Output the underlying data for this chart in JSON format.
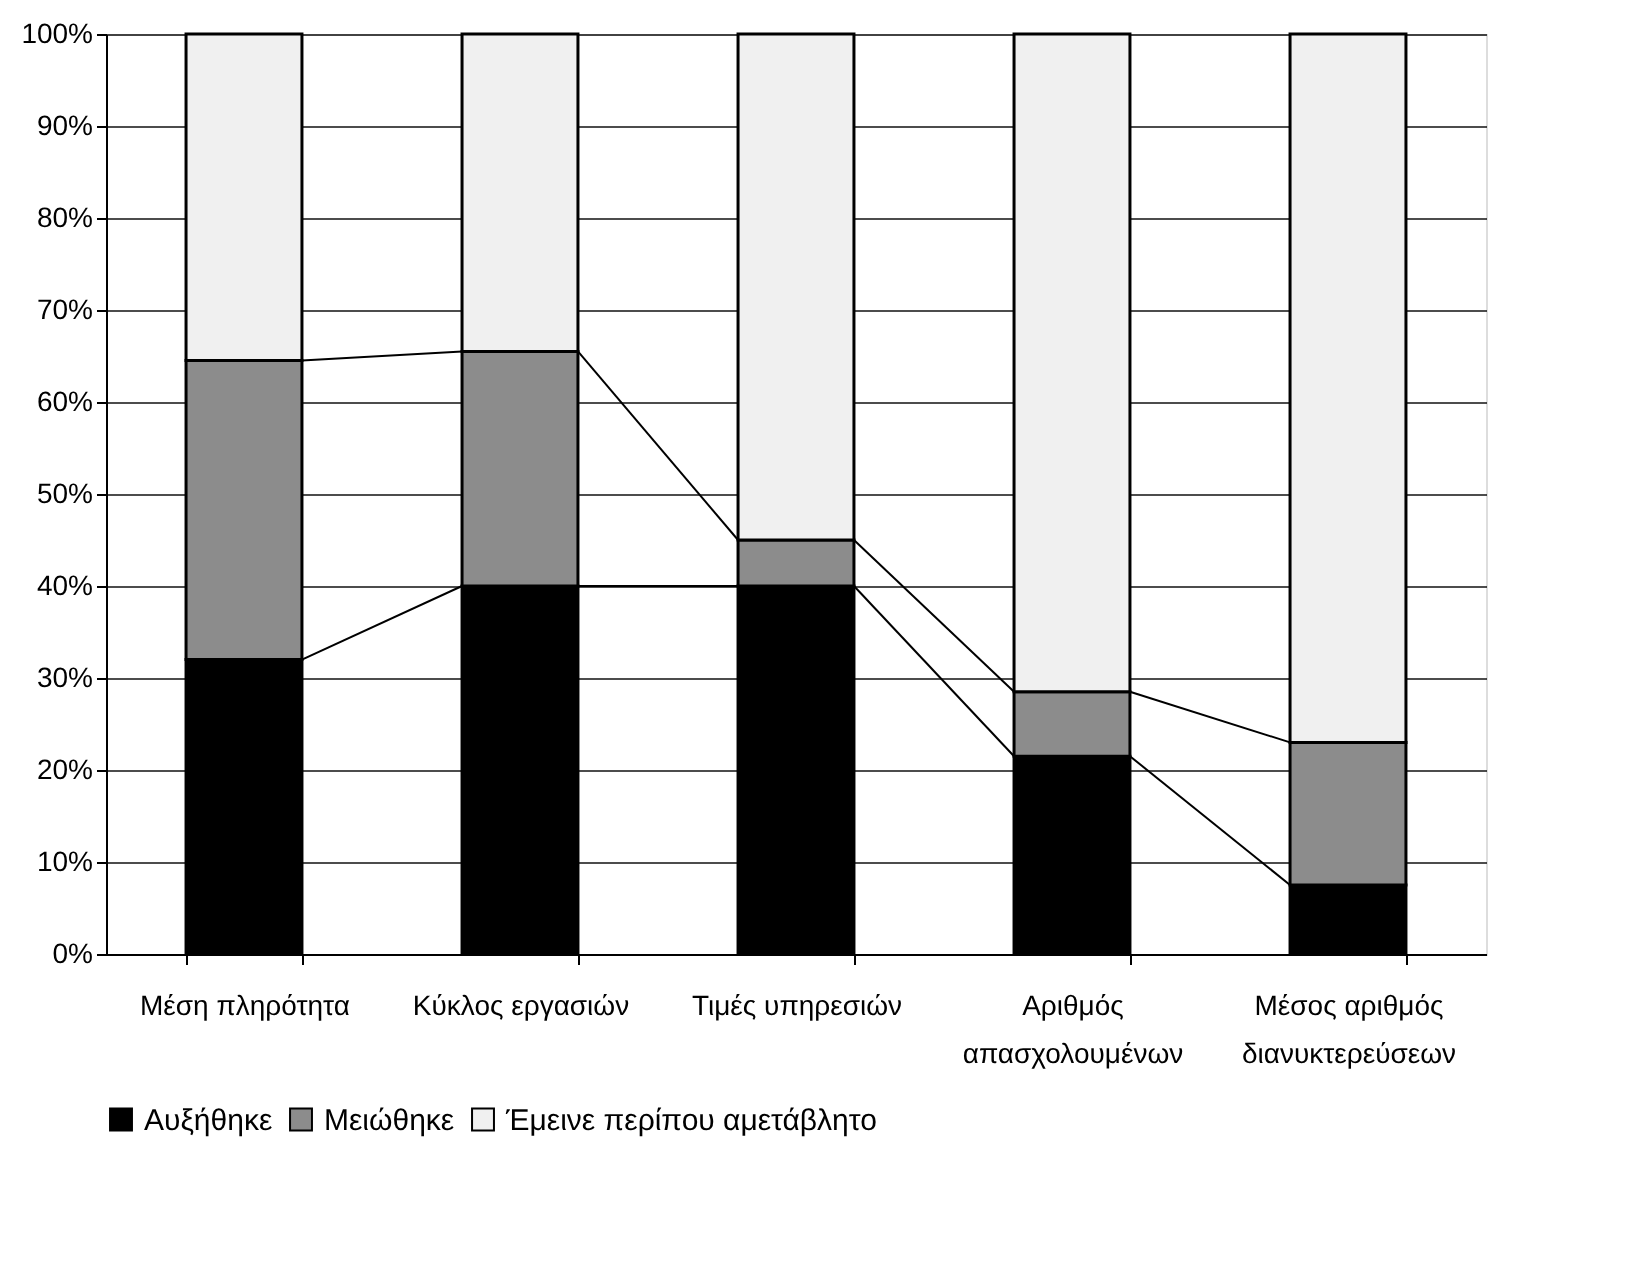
{
  "chart_data": {
    "type": "bar",
    "stacked": true,
    "categories": [
      "Μέση πληρότητα",
      "Κύκλος εργασιών",
      "Τιμές υπηρεσιών",
      "Αριθμός απασχολουμένων",
      "Μέσος αριθμός διανυκτερεύσεων"
    ],
    "series": [
      {
        "name": "Αυξήθηκε",
        "color": "#000000",
        "values": [
          32,
          40,
          40,
          21.5,
          7.5
        ]
      },
      {
        "name": "Μειώθηκε",
        "color": "#8c8c8c",
        "values": [
          32.5,
          25.5,
          5,
          7,
          15.5
        ]
      },
      {
        "name": "Έμεινε περίπου αμετάβλητο",
        "color": "#f0f0f0",
        "values": [
          35.5,
          34.5,
          55,
          71.5,
          77
        ]
      }
    ],
    "ylim": [
      0,
      100
    ],
    "yticks": [
      {
        "value": 0,
        "label": "0%"
      },
      {
        "value": 10,
        "label": "10%"
      },
      {
        "value": 20,
        "label": "20%"
      },
      {
        "value": 30,
        "label": "30%"
      },
      {
        "value": 40,
        "label": "40%"
      },
      {
        "value": 50,
        "label": "50%"
      },
      {
        "value": 60,
        "label": "60%"
      },
      {
        "value": 70,
        "label": "70%"
      },
      {
        "value": 80,
        "label": "80%"
      },
      {
        "value": 90,
        "label": "90%"
      },
      {
        "value": 100,
        "label": "100%"
      }
    ],
    "grid": "y",
    "legend": "bottom"
  }
}
